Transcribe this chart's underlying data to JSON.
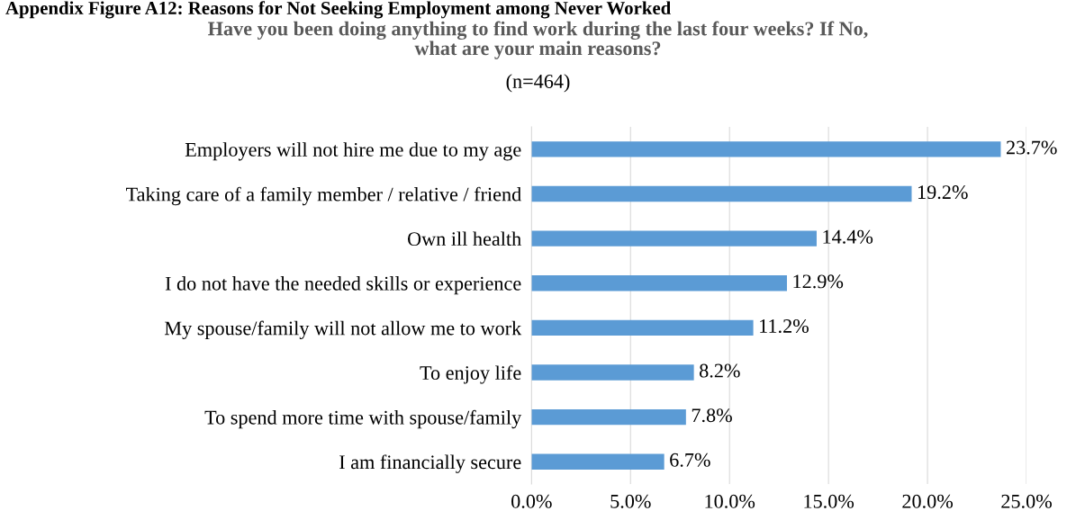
{
  "chart_data": {
    "type": "bar",
    "orientation": "horizontal",
    "title": "Have you been doing anything to find work during the last four weeks? If No,\nwhat are your main reasons?",
    "subtitle": "(n=464)",
    "annotations": [
      "Appendix Figure A12: Reasons for Not Seeking Employment among Never Worked"
    ],
    "categories": [
      "Employers will not hire me due to my age",
      "Taking care of a family member / relative / friend",
      "Own ill health",
      "I do not have the needed skills or experience",
      "My spouse/family will not allow me to work",
      "To enjoy life",
      "To spend more time with spouse/family",
      "I am financially secure"
    ],
    "values": [
      23.7,
      19.2,
      14.4,
      12.9,
      11.2,
      8.2,
      7.8,
      6.7
    ],
    "value_labels": [
      "23.7%",
      "19.2%",
      "14.4%",
      "12.9%",
      "11.2%",
      "8.2%",
      "7.8%",
      "6.7%"
    ],
    "color": "#5b9bd5",
    "xlim": [
      0,
      25
    ],
    "xticks": [
      {
        "value": 0,
        "label": "0.0%"
      },
      {
        "value": 5,
        "label": "5.0%"
      },
      {
        "value": 10,
        "label": "10.0%"
      },
      {
        "value": 15,
        "label": "15.0%"
      },
      {
        "value": 20,
        "label": "20.0%"
      },
      {
        "value": 25,
        "label": "25.0%"
      }
    ],
    "grid": "x",
    "legend": false
  }
}
